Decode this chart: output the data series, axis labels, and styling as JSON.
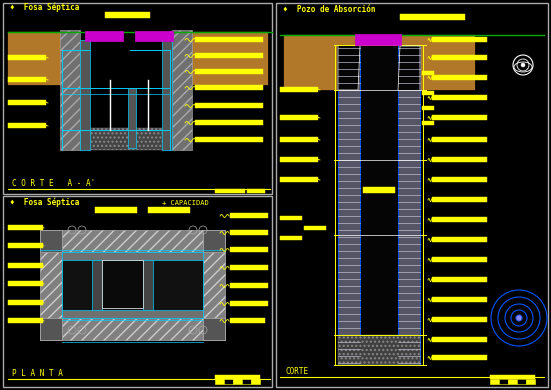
{
  "bg_color": "#000000",
  "border_color": "#aaaaaa",
  "yellow": "#ffff00",
  "blue": "#0055ff",
  "cyan": "#00ccff",
  "purple": "#cc00cc",
  "green": "#00aa00",
  "white": "#ffffff",
  "brown": "#b07828",
  "gray": "#888888",
  "title_top_left": "♦  Fosa Séptica",
  "title_bottom_left": "♦  Fosa Séptica",
  "title_right": "♦  Pozo de Absorción",
  "label_corte": "C O R T E   A - A'",
  "label_planta": "P L A N T A",
  "label_corte_right": "CORTE",
  "label_capacidad": "+ CAPACIDAD"
}
